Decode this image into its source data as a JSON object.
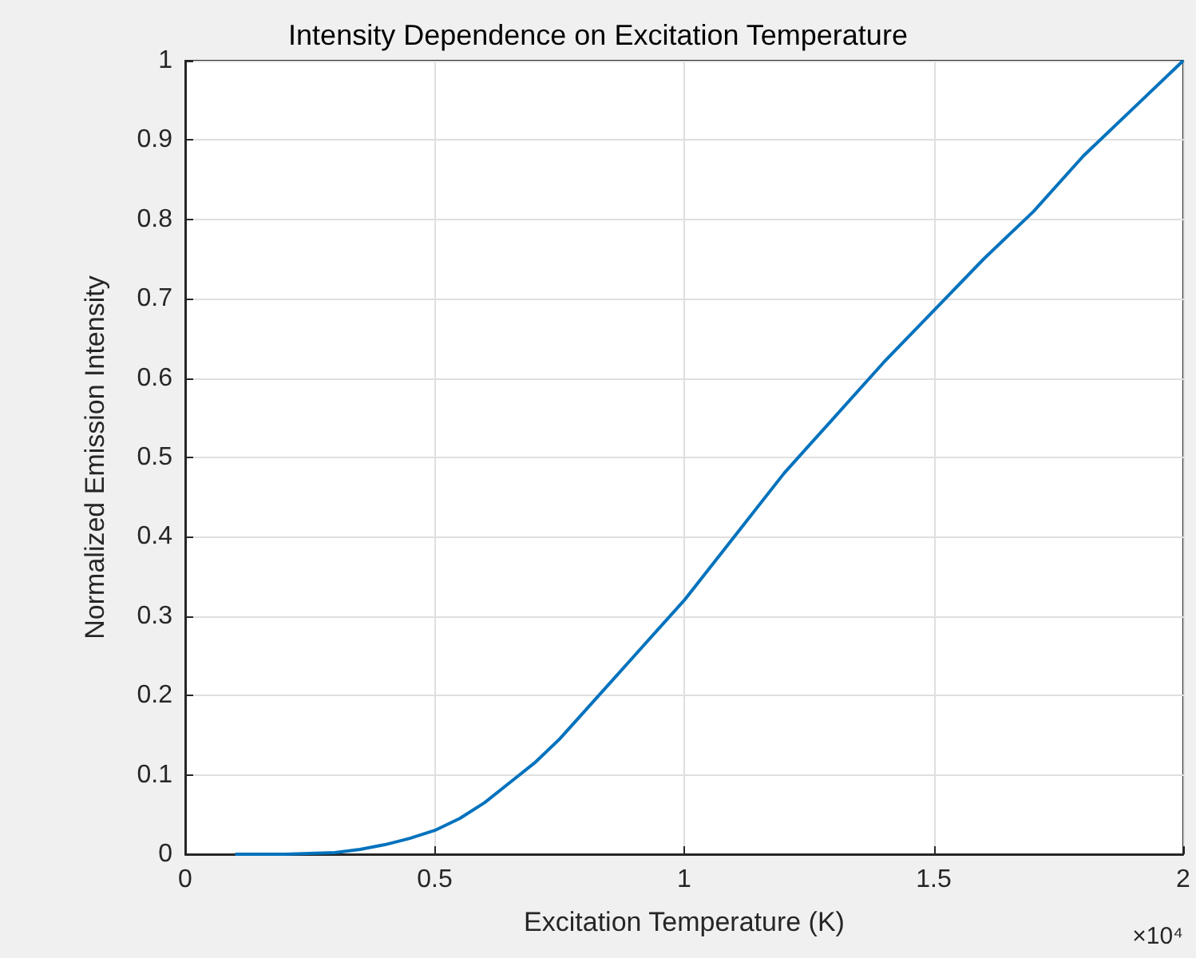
{
  "chart_data": {
    "type": "line",
    "title": "Intensity Dependence on Excitation Temperature",
    "xlabel": "Excitation Temperature (K)",
    "ylabel": "Normalized Emission Intensity",
    "annotations": [
      "×10⁴"
    ],
    "x": [
      0.1,
      0.2,
      0.3,
      0.35,
      0.4,
      0.45,
      0.5,
      0.55,
      0.6,
      0.65,
      0.7,
      0.75,
      0.8,
      0.85,
      0.9,
      0.95,
      1,
      1.1,
      1.2,
      1.3,
      1.4,
      1.5,
      1.6,
      1.7,
      1.8,
      1.9,
      2
    ],
    "series": [
      {
        "color": "#0072bd",
        "values": [
          0,
          0,
          0.002,
          0.006,
          0.012,
          0.02,
          0.03,
          0.045,
          0.065,
          0.09,
          0.115,
          0.145,
          0.18,
          0.215,
          0.25,
          0.285,
          0.32,
          0.4,
          0.48,
          0.55,
          0.62,
          0.685,
          0.75,
          0.81,
          0.88,
          0.94,
          1.0
        ]
      }
    ],
    "xlim": [
      0,
      2
    ],
    "xticks": [
      0,
      0.5,
      1,
      1.5,
      2
    ],
    "ylim": [
      0,
      1
    ],
    "yticks": [
      0,
      0.1,
      0.2,
      0.3,
      0.4,
      0.5,
      0.6,
      0.7,
      0.8,
      0.9,
      1
    ],
    "grid": true,
    "marker": "none",
    "line_style": "solid"
  }
}
